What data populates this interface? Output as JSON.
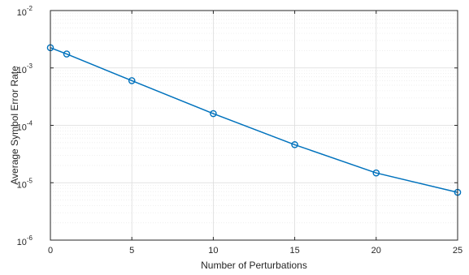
{
  "chart_data": {
    "type": "line",
    "title": "",
    "xlabel": "Number of Perturbations",
    "ylabel": "Average Symbol Error Rate",
    "xlim": [
      0,
      25
    ],
    "ylim": [
      1e-06,
      0.01
    ],
    "y_scale": "log",
    "grid": true,
    "minor_grid": true,
    "x_ticks": [
      0,
      5,
      10,
      15,
      20,
      25
    ],
    "x_tick_labels": [
      "0",
      "5",
      "10",
      "15",
      "20",
      "25"
    ],
    "y_ticks": [
      {
        "base": "10",
        "exp": "-6"
      },
      {
        "base": "10",
        "exp": "-5"
      },
      {
        "base": "10",
        "exp": "-4"
      },
      {
        "base": "10",
        "exp": "-3"
      },
      {
        "base": "10",
        "exp": "-2"
      }
    ],
    "series": [
      {
        "color": "#0072BD",
        "marker": "circle",
        "x": [
          0,
          1,
          5,
          10,
          15,
          20,
          25
        ],
        "y": [
          0.00225,
          0.00175,
          0.0006,
          0.00016,
          4.6e-05,
          1.48e-05,
          6.8e-06
        ]
      }
    ]
  }
}
